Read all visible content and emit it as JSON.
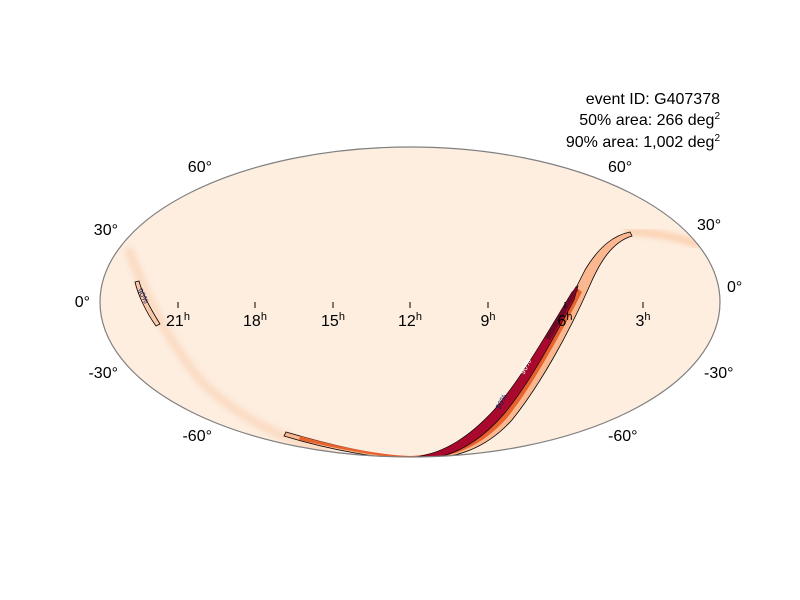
{
  "event_id_label": "event ID: G407378",
  "area_50": {
    "label": "50% area: 266 deg",
    "exponent": "2"
  },
  "area_90": {
    "label": "90% area: 1,002 deg",
    "exponent": "2"
  },
  "dec_labels": {
    "p60": "60°",
    "p30": "30°",
    "zero": "0°",
    "m30": "-30°",
    "m60": "-60°"
  },
  "ra_labels": [
    "21",
    "18",
    "15",
    "12",
    "9",
    "6",
    "3"
  ],
  "ra_unit": "h",
  "contour_labels": [
    "90%",
    "90%",
    "90%"
  ],
  "colors": {
    "background_sky": "#fdeee0",
    "low_prob": "#fbc9a8",
    "mid_prob": "#e8622e",
    "high_prob": "#a8092d",
    "outline": "#808080",
    "contour": "#000000"
  }
}
